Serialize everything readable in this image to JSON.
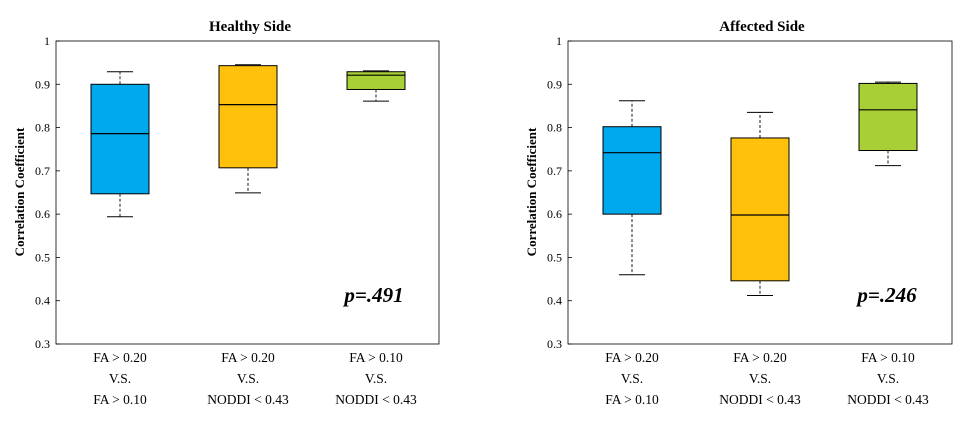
{
  "chart_data": [
    {
      "type": "box",
      "title": "Healthy Side",
      "ylabel": "Correlation Coefficient",
      "ylim": [
        0.3,
        1
      ],
      "yticks": [
        "0.3",
        "0.4",
        "0.5",
        "0.6",
        "0.7",
        "0.8",
        "0.9",
        "1"
      ],
      "annotation": "p=.491",
      "categories": [
        {
          "line1": "FA > 0.20",
          "line2": "V.S.",
          "line3": "FA > 0.10"
        },
        {
          "line1": "FA > 0.20",
          "line2": "V.S.",
          "line3": "NODDI < 0.43"
        },
        {
          "line1": "FA > 0.10",
          "line2": "V.S.",
          "line3": "NODDI < 0.43"
        }
      ],
      "boxes": [
        {
          "min": 0.594,
          "q1": 0.647,
          "median": 0.786,
          "q3": 0.9,
          "max": 0.929,
          "color": "#00a8ec"
        },
        {
          "min": 0.649,
          "q1": 0.707,
          "median": 0.853,
          "q3": 0.943,
          "max": 0.945,
          "color": "#ffc10c"
        },
        {
          "min": 0.861,
          "q1": 0.888,
          "median": 0.921,
          "q3": 0.929,
          "max": 0.931,
          "color": "#a8cf35"
        }
      ]
    },
    {
      "type": "box",
      "title": "Affected Side",
      "ylabel": "Correlation Coefficient",
      "ylim": [
        0.3,
        1
      ],
      "yticks": [
        "0.3",
        "0.4",
        "0.5",
        "0.6",
        "0.7",
        "0.8",
        "0.9",
        "1"
      ],
      "annotation": "p=.246",
      "categories": [
        {
          "line1": "FA > 0.20",
          "line2": "V.S.",
          "line3": "FA > 0.10"
        },
        {
          "line1": "FA > 0.20",
          "line2": "V.S.",
          "line3": "NODDI < 0.43"
        },
        {
          "line1": "FA > 0.10",
          "line2": "V.S.",
          "line3": "NODDI < 0.43"
        }
      ],
      "boxes": [
        {
          "min": 0.46,
          "q1": 0.6,
          "median": 0.742,
          "q3": 0.802,
          "max": 0.862,
          "color": "#00a8ec"
        },
        {
          "min": 0.412,
          "q1": 0.446,
          "median": 0.598,
          "q3": 0.776,
          "max": 0.835,
          "color": "#ffc10c"
        },
        {
          "min": 0.712,
          "q1": 0.747,
          "median": 0.841,
          "q3": 0.902,
          "max": 0.905,
          "color": "#a8cf35"
        }
      ]
    }
  ]
}
